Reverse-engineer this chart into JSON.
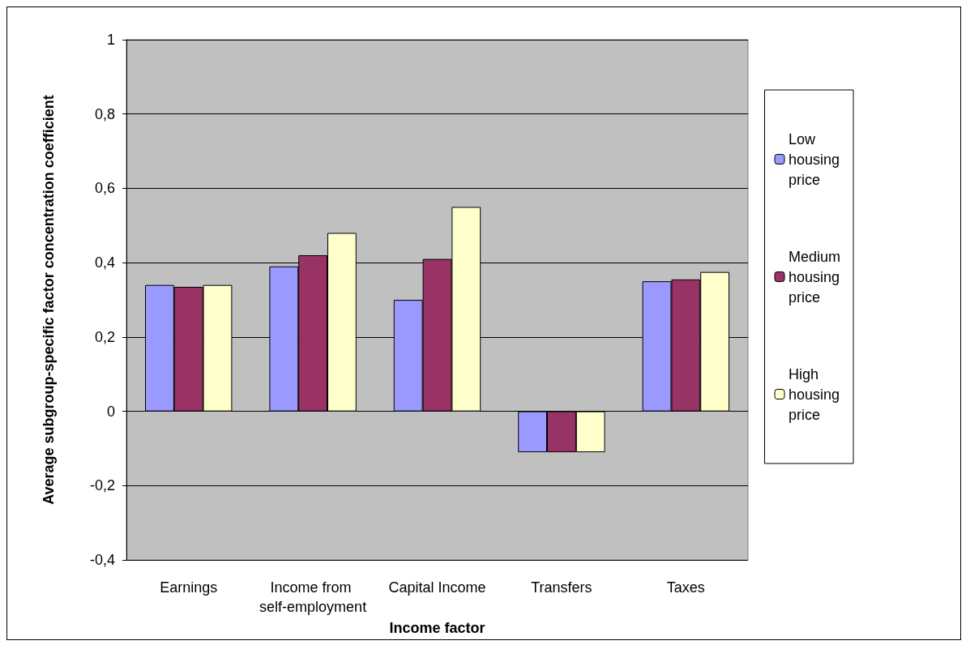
{
  "chart_data": {
    "type": "bar",
    "xlabel": "Income factor",
    "ylabel": "Average subgroup-specific factor concentration coefficient",
    "categories": [
      "Earnings",
      "Income from self-employment",
      "Capital Income",
      "Transfers",
      "Taxes"
    ],
    "series": [
      {
        "name": "Low housing price",
        "color": "#9999ff",
        "values": [
          0.34,
          0.39,
          0.3,
          -0.11,
          0.35
        ]
      },
      {
        "name": "Medium housing price",
        "color": "#993366",
        "values": [
          0.335,
          0.42,
          0.41,
          -0.11,
          0.355
        ]
      },
      {
        "name": "High housing price",
        "color": "#ffffcc",
        "values": [
          0.34,
          0.48,
          0.55,
          -0.11,
          0.375
        ]
      }
    ],
    "ylim": [
      -0.4,
      1
    ],
    "yticks": [
      {
        "value": -0.4,
        "label": "-0,4"
      },
      {
        "value": -0.2,
        "label": "-0,2"
      },
      0,
      {
        "value": 0.2,
        "label": "0,2"
      },
      {
        "value": 0.4,
        "label": "0,4"
      },
      {
        "value": 0.6,
        "label": "0,6"
      },
      {
        "value": 0.8,
        "label": "0,8"
      },
      1
    ],
    "grid": "y",
    "legend": "right"
  }
}
